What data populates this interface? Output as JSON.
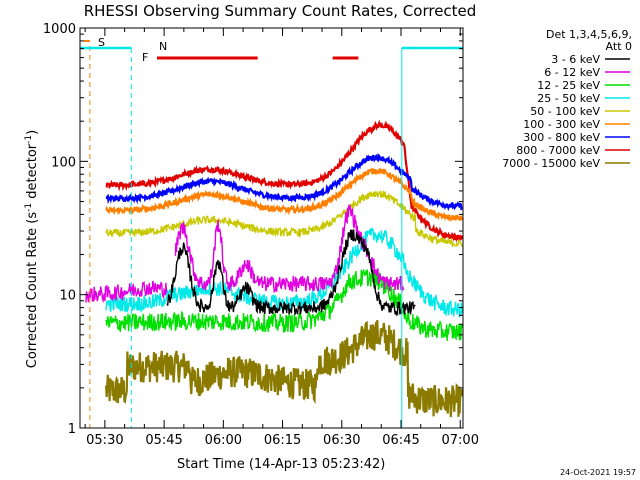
{
  "chart_data": {
    "type": "line",
    "title": "RHESSI Observing Summary Count Rates, Corrected",
    "xlabel": "Start Time (14-Apr-13 05:23:42)",
    "ylabel_main": "Corrected Count Rate (s",
    "ylabel_sup1": "-1",
    "ylabel_mid": " detector",
    "ylabel_sup2": "-1",
    "ylabel_end": ")",
    "y_scale": "log",
    "ylim": [
      1,
      1000
    ],
    "xlim_minutes": [
      0,
      97
    ],
    "x_ticks": [
      {
        "label": "05:30",
        "min": 6.3
      },
      {
        "label": "05:45",
        "min": 21.3
      },
      {
        "label": "06:00",
        "min": 36.3
      },
      {
        "label": "06:15",
        "min": 51.3
      },
      {
        "label": "06:30",
        "min": 66.3
      },
      {
        "label": "06:45",
        "min": 81.3
      },
      {
        "label": "07:00",
        "min": 96.3
      }
    ],
    "y_ticks": [
      {
        "label": "1",
        "v": 1
      },
      {
        "label": "10",
        "v": 10
      },
      {
        "label": "100",
        "v": 100
      },
      {
        "label": "1000",
        "v": 1000
      }
    ],
    "legend_header": [
      "Det 1,3,4,5,6,9,",
      "Att 0"
    ],
    "series": [
      {
        "name": "3 - 6 keV",
        "color": "#000000"
      },
      {
        "name": "6 - 12 keV",
        "color": "#e000e0"
      },
      {
        "name": "12 - 25 keV",
        "color": "#00e000"
      },
      {
        "name": "25 - 50 keV",
        "color": "#00e8e8"
      },
      {
        "name": "50 - 100 keV",
        "color": "#c8c800"
      },
      {
        "name": "100 - 300 keV",
        "color": "#ff8000"
      },
      {
        "name": "300 - 800 keV",
        "color": "#0000ff"
      },
      {
        "name": "800 - 7000 keV",
        "color": "#e00000"
      },
      {
        "name": "7000 - 15000 keV",
        "color": "#8a7a00"
      }
    ],
    "flags": [
      {
        "label": "S",
        "color": "#ff8000"
      },
      {
        "label": "N",
        "color": "#00e8e8"
      },
      {
        "label": "F",
        "color": "#e00000"
      }
    ]
  },
  "timestamp": "24-Oct-2021 19:57"
}
